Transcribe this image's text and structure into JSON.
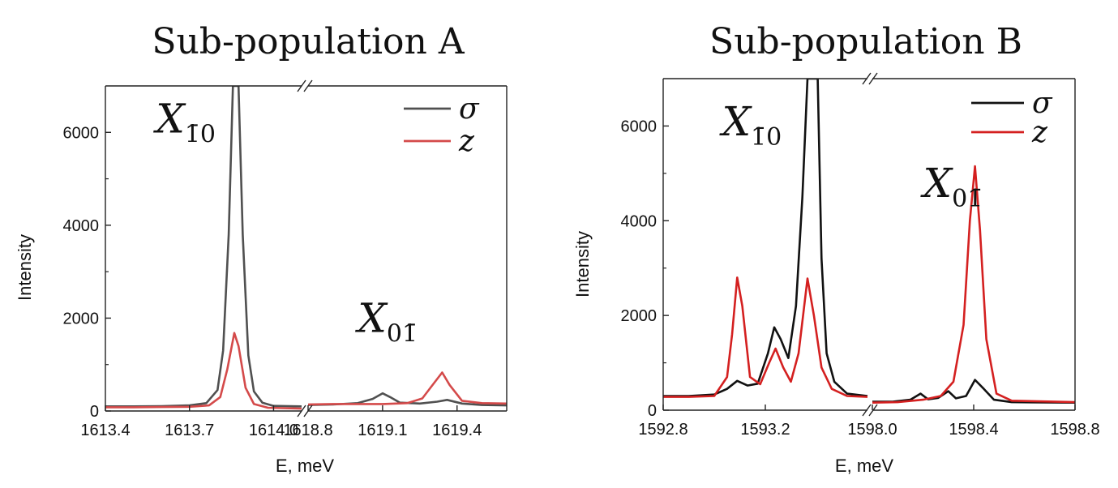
{
  "chart_data": [
    {
      "type": "line",
      "title": "Sub-population A",
      "xlabel": "E, meV",
      "ylabel": "Intensity",
      "ylim": [
        0,
        7000
      ],
      "yticks": [
        "0",
        "2000",
        "4000",
        "6000"
      ],
      "broken_x_axis": true,
      "segments": [
        {
          "xlim": [
            1613.4,
            1614.1
          ],
          "xticks": [
            "1613.4",
            "1613.7",
            "1614.0"
          ]
        },
        {
          "xlim": [
            1618.8,
            1619.6
          ],
          "xticks": [
            "1618.8",
            "1619.1",
            "1619.4"
          ]
        }
      ],
      "legend": {
        "position": "top-right",
        "entries": [
          "σ",
          "z"
        ]
      },
      "series": [
        {
          "name": "σ",
          "color": "#505050",
          "segments": [
            [
              [
                1613.4,
                100
              ],
              [
                1613.5,
                100
              ],
              [
                1613.6,
                105
              ],
              [
                1613.7,
                120
              ],
              [
                1613.76,
                170
              ],
              [
                1613.8,
                450
              ],
              [
                1613.82,
                1300
              ],
              [
                1613.84,
                3800
              ],
              [
                1613.855,
                7000
              ],
              [
                1613.875,
                7000
              ],
              [
                1613.89,
                3800
              ],
              [
                1613.91,
                1200
              ],
              [
                1613.93,
                420
              ],
              [
                1613.96,
                180
              ],
              [
                1614.0,
                110
              ],
              [
                1614.1,
                100
              ]
            ],
            [
              [
                1618.8,
                130
              ],
              [
                1618.9,
                140
              ],
              [
                1619.0,
                170
              ],
              [
                1619.06,
                260
              ],
              [
                1619.1,
                380
              ],
              [
                1619.13,
                300
              ],
              [
                1619.17,
                180
              ],
              [
                1619.25,
                160
              ],
              [
                1619.32,
                200
              ],
              [
                1619.36,
                240
              ],
              [
                1619.42,
                160
              ],
              [
                1619.5,
                130
              ],
              [
                1619.6,
                120
              ]
            ]
          ]
        },
        {
          "name": "z",
          "color": "#d44a4a",
          "segments": [
            [
              [
                1613.4,
                80
              ],
              [
                1613.5,
                80
              ],
              [
                1613.6,
                85
              ],
              [
                1613.7,
                90
              ],
              [
                1613.77,
                120
              ],
              [
                1613.81,
                300
              ],
              [
                1613.835,
                900
              ],
              [
                1613.86,
                1680
              ],
              [
                1613.875,
                1400
              ],
              [
                1613.9,
                500
              ],
              [
                1613.93,
                150
              ],
              [
                1613.98,
                70
              ],
              [
                1614.1,
                50
              ]
            ],
            [
              [
                1618.8,
                140
              ],
              [
                1618.9,
                150
              ],
              [
                1619.0,
                150
              ],
              [
                1619.1,
                150
              ],
              [
                1619.2,
                170
              ],
              [
                1619.26,
                270
              ],
              [
                1619.3,
                550
              ],
              [
                1619.34,
                830
              ],
              [
                1619.37,
                560
              ],
              [
                1619.42,
                220
              ],
              [
                1619.5,
                170
              ],
              [
                1619.6,
                160
              ]
            ]
          ]
        }
      ],
      "annotations": [
        {
          "text": "X",
          "sub": "1̄0",
          "x": 1613.58,
          "y": 6000
        },
        {
          "text": "X",
          "sub": "01̄",
          "x": 1619.0,
          "y": 1700
        }
      ]
    },
    {
      "type": "line",
      "title": "Sub-population B",
      "xlabel": "E, meV",
      "ylabel": "Intensity",
      "ylim": [
        0,
        7000
      ],
      "yticks": [
        "0",
        "2000",
        "4000",
        "6000"
      ],
      "broken_x_axis": true,
      "segments": [
        {
          "xlim": [
            1592.8,
            1593.6
          ],
          "xticks": [
            "1592.8",
            "1593.2"
          ]
        },
        {
          "xlim": [
            1598.0,
            1598.8
          ],
          "xticks": [
            "1598.0",
            "1598.4",
            "1598.8"
          ]
        }
      ],
      "legend": {
        "position": "top-right",
        "entries": [
          "σ",
          "z"
        ]
      },
      "series": [
        {
          "name": "σ",
          "color": "#111111",
          "segments": [
            [
              [
                1592.8,
                300
              ],
              [
                1592.9,
                300
              ],
              [
                1593.0,
                330
              ],
              [
                1593.05,
                450
              ],
              [
                1593.09,
                620
              ],
              [
                1593.13,
                520
              ],
              [
                1593.17,
                560
              ],
              [
                1593.21,
                1200
              ],
              [
                1593.235,
                1750
              ],
              [
                1593.26,
                1500
              ],
              [
                1593.29,
                1100
              ],
              [
                1593.32,
                2200
              ],
              [
                1593.345,
                4500
              ],
              [
                1593.365,
                7000
              ],
              [
                1593.405,
                7000
              ],
              [
                1593.42,
                3200
              ],
              [
                1593.44,
                1200
              ],
              [
                1593.47,
                600
              ],
              [
                1593.52,
                350
              ],
              [
                1593.6,
                300
              ]
            ],
            [
              [
                1598.0,
                180
              ],
              [
                1598.08,
                180
              ],
              [
                1598.15,
                220
              ],
              [
                1598.19,
                350
              ],
              [
                1598.22,
                230
              ],
              [
                1598.26,
                260
              ],
              [
                1598.3,
                400
              ],
              [
                1598.33,
                250
              ],
              [
                1598.37,
                300
              ],
              [
                1598.405,
                640
              ],
              [
                1598.44,
                450
              ],
              [
                1598.48,
                220
              ],
              [
                1598.55,
                170
              ],
              [
                1598.8,
                160
              ]
            ]
          ]
        },
        {
          "name": "z",
          "color": "#d42020",
          "segments": [
            [
              [
                1592.8,
                280
              ],
              [
                1592.9,
                280
              ],
              [
                1593.0,
                300
              ],
              [
                1593.05,
                700
              ],
              [
                1593.07,
                1600
              ],
              [
                1593.09,
                2800
              ],
              [
                1593.11,
                2200
              ],
              [
                1593.14,
                700
              ],
              [
                1593.18,
                550
              ],
              [
                1593.215,
                1000
              ],
              [
                1593.24,
                1300
              ],
              [
                1593.27,
                900
              ],
              [
                1593.3,
                600
              ],
              [
                1593.33,
                1200
              ],
              [
                1593.365,
                2780
              ],
              [
                1593.39,
                2000
              ],
              [
                1593.42,
                900
              ],
              [
                1593.46,
                450
              ],
              [
                1593.52,
                300
              ],
              [
                1593.6,
                280
              ]
            ],
            [
              [
                1598.0,
                160
              ],
              [
                1598.1,
                170
              ],
              [
                1598.2,
                220
              ],
              [
                1598.27,
                300
              ],
              [
                1598.32,
                600
              ],
              [
                1598.36,
                1800
              ],
              [
                1598.385,
                4000
              ],
              [
                1598.405,
                5150
              ],
              [
                1598.425,
                3800
              ],
              [
                1598.45,
                1500
              ],
              [
                1598.49,
                350
              ],
              [
                1598.55,
                200
              ],
              [
                1598.8,
                170
              ]
            ]
          ]
        }
      ],
      "annotations": [
        {
          "text": "X",
          "sub": "1̄0",
          "x": 1593.03,
          "y": 5800
        },
        {
          "text": "X",
          "sub": "01̄",
          "x": 1598.2,
          "y": 4500
        }
      ]
    }
  ]
}
